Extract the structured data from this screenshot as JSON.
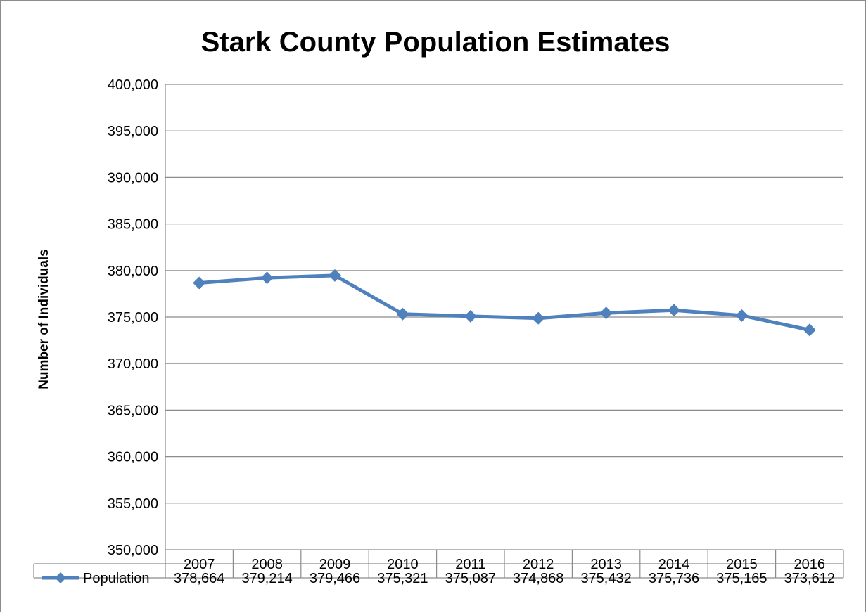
{
  "chart_data": {
    "type": "line",
    "title": "Stark County Population Estimates",
    "ylabel": "Number of Individuals",
    "xlabel": "",
    "categories": [
      "2007",
      "2008",
      "2009",
      "2010",
      "2011",
      "2012",
      "2013",
      "2014",
      "2015",
      "2016"
    ],
    "series": [
      {
        "name": "Population",
        "color": "#4f81bd",
        "values": [
          378664,
          379214,
          379466,
          375321,
          375087,
          374868,
          375432,
          375736,
          375165,
          373612
        ],
        "value_labels": [
          "378,664",
          "379,214",
          "379,466",
          "375,321",
          "375,087",
          "374,868",
          "375,432",
          "375,736",
          "375,165",
          "373,612"
        ]
      }
    ],
    "ylim": [
      350000,
      400000
    ],
    "y_ticks": [
      "350,000",
      "355,000",
      "360,000",
      "365,000",
      "370,000",
      "375,000",
      "380,000",
      "385,000",
      "390,000",
      "395,000",
      "400,000"
    ],
    "grid": true,
    "data_table": true,
    "marker": "diamond"
  }
}
